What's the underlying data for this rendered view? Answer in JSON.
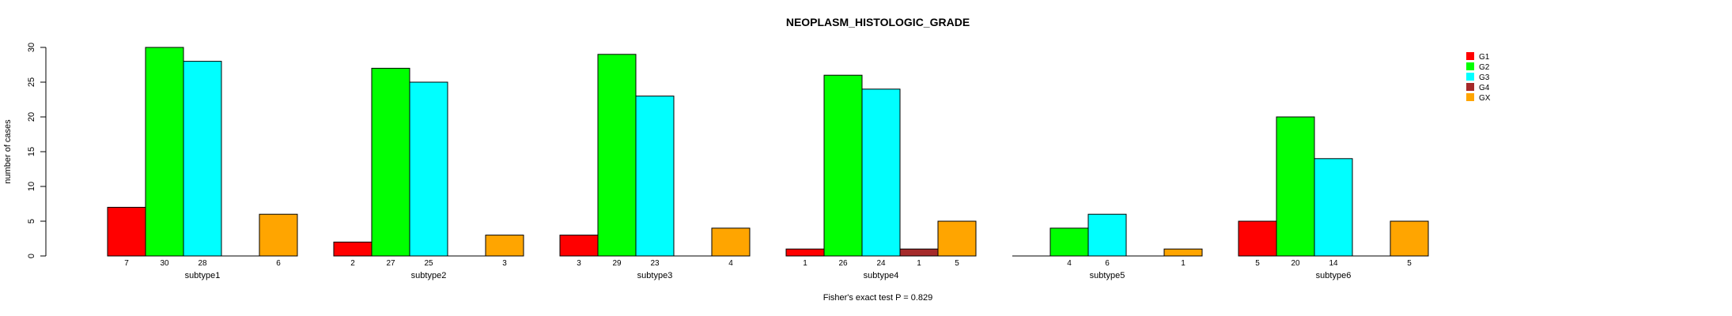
{
  "chart_data": {
    "type": "bar",
    "title": "NEOPLASM_HISTOLOGIC_GRADE",
    "xlabel": "",
    "ylabel": "number of cases",
    "ylim": [
      0,
      30
    ],
    "yticks": [
      0,
      5,
      10,
      15,
      20,
      25,
      30
    ],
    "footnote": "Fisher's exact test P = 0.829",
    "legend_position": "top-right",
    "categories": [
      "subtype1",
      "subtype2",
      "subtype3",
      "subtype4",
      "subtype5",
      "subtype6"
    ],
    "series": [
      {
        "name": "G1",
        "color": "#ff0000",
        "values": [
          7,
          2,
          3,
          1,
          0,
          5
        ]
      },
      {
        "name": "G2",
        "color": "#00ff00",
        "values": [
          30,
          27,
          29,
          26,
          4,
          20
        ]
      },
      {
        "name": "G3",
        "color": "#00ffff",
        "values": [
          28,
          25,
          23,
          24,
          6,
          14
        ]
      },
      {
        "name": "G4",
        "color": "#a52a2a",
        "values": [
          0,
          0,
          0,
          1,
          0,
          0
        ]
      },
      {
        "name": "GX",
        "color": "#ffa500",
        "values": [
          6,
          3,
          4,
          5,
          1,
          5
        ]
      }
    ]
  }
}
